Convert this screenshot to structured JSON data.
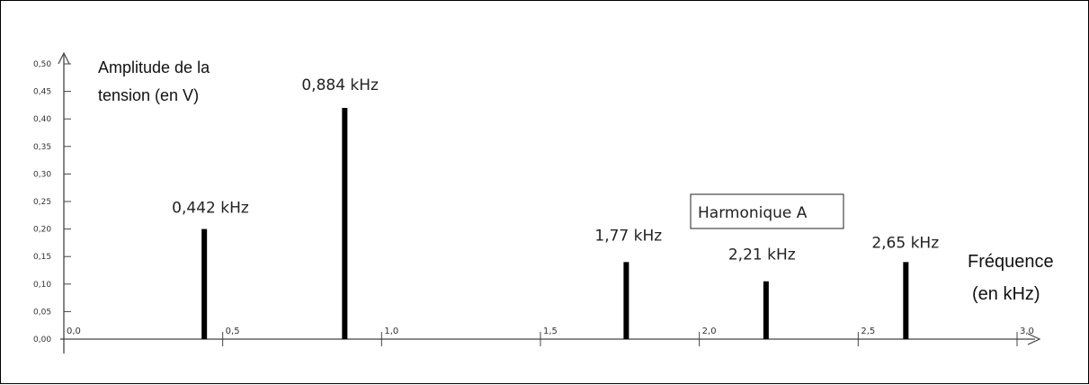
{
  "chart_data": {
    "type": "bar",
    "ylabel_lines": [
      "Amplitude de la",
      "tension (en V)"
    ],
    "xlabel_lines": [
      "Fréquence",
      "(en kHz)"
    ],
    "x": [
      0.442,
      0.884,
      1.77,
      2.21,
      2.65
    ],
    "values": [
      0.2,
      0.42,
      0.14,
      0.105,
      0.14
    ],
    "bar_labels": [
      "0,442 kHz",
      "0,884 kHz",
      "1,77 kHz",
      "2,21 kHz",
      "2,65 kHz"
    ],
    "annotation": "Harmonique A",
    "xlim": [
      0.0,
      3.0
    ],
    "ylim": [
      0.0,
      0.5
    ],
    "xticks": [
      "0,0",
      "0,5",
      "1,0",
      "1,5",
      "2,0",
      "2,5",
      "3,0"
    ],
    "yticks": [
      "0,00",
      "0,05",
      "0,10",
      "0,15",
      "0,20",
      "0,25",
      "0,30",
      "0,35",
      "0,40",
      "0,45",
      "0,50"
    ],
    "bar_color": "#000000",
    "axis_color": "#444444"
  }
}
